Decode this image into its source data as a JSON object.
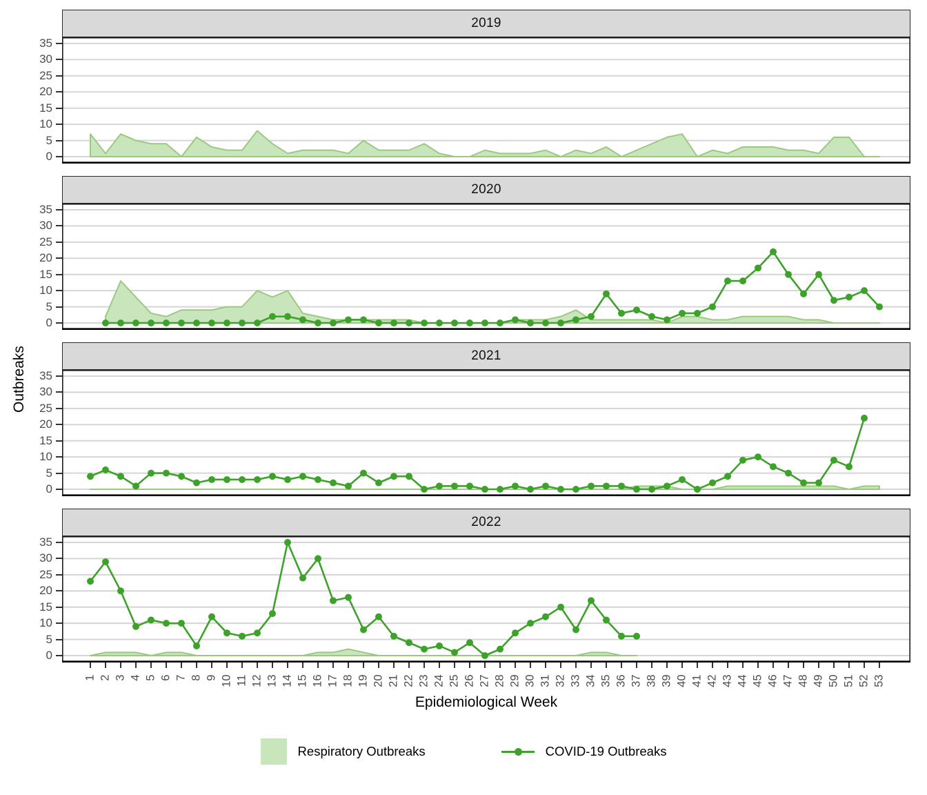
{
  "title": "",
  "axis": {
    "x_title": "Epidemiological Week",
    "y_title": "Outbreaks",
    "x_tick_labels": [
      "1",
      "2",
      "3",
      "4",
      "5",
      "6",
      "7",
      "8",
      "9",
      "10",
      "11",
      "12",
      "13",
      "14",
      "15",
      "16",
      "17",
      "18",
      "19",
      "20",
      "21",
      "22",
      "23",
      "24",
      "25",
      "26",
      "27",
      "28",
      "29",
      "30",
      "31",
      "32",
      "33",
      "34",
      "35",
      "36",
      "37",
      "38",
      "39",
      "40",
      "41",
      "42",
      "43",
      "44",
      "45",
      "46",
      "47",
      "48",
      "49",
      "50",
      "51",
      "52",
      "53"
    ],
    "y_tick_labels": [
      "0",
      "5",
      "10",
      "15",
      "20",
      "25",
      "30",
      "35"
    ]
  },
  "legend": {
    "items": [
      {
        "label": "Respiratory Outbreaks",
        "symbol": "area-swatch"
      },
      {
        "label": "COVID-19 Outbreaks",
        "symbol": "line-with-point"
      }
    ]
  },
  "colors": {
    "line_green": "#3DA229",
    "area_fill": "#C9E5BB",
    "area_edge": "#9BC981",
    "strip_bg": "#D9D9D9",
    "gridline": "#D5D5D5",
    "axis_text": "#4D4D4D",
    "panel_border": "#1A1A1A"
  },
  "chart_data": {
    "type": "area+line faceted by year",
    "x_range": [
      1,
      53
    ],
    "ylim": [
      0,
      35
    ],
    "grid": "horizontal major every 5",
    "legend_position": "bottom",
    "facets": [
      {
        "year": "2019",
        "respiratory": {
          "start_week": 1,
          "values": [
            7,
            1,
            7,
            5,
            4,
            4,
            0,
            6,
            3,
            2,
            2,
            8,
            4,
            1,
            2,
            2,
            2,
            1,
            5,
            2,
            2,
            2,
            4,
            1,
            0,
            0,
            2,
            1,
            1,
            1,
            2,
            0,
            2,
            1,
            3,
            0,
            2,
            4,
            6,
            7,
            0,
            2,
            1,
            3,
            3,
            3,
            2,
            2,
            1,
            6,
            6,
            0,
            0
          ]
        },
        "covid": null
      },
      {
        "year": "2020",
        "respiratory": {
          "start_week": 2,
          "values": [
            2,
            13,
            8,
            3,
            2,
            4,
            4,
            4,
            5,
            5,
            10,
            8,
            10,
            3,
            2,
            1,
            1,
            1,
            1,
            1,
            1,
            0,
            0,
            0,
            0,
            0,
            0,
            1,
            1,
            1,
            2,
            4,
            1,
            1,
            1,
            1,
            1,
            0,
            2,
            2,
            1,
            1,
            2,
            2,
            2,
            2,
            1,
            1,
            0,
            0,
            0,
            0
          ]
        },
        "covid": {
          "start_week": 2,
          "values": [
            0,
            0,
            0,
            0,
            0,
            0,
            0,
            0,
            0,
            0,
            0,
            2,
            2,
            1,
            0,
            0,
            1,
            1,
            0,
            0,
            0,
            0,
            0,
            0,
            0,
            0,
            0,
            1,
            0,
            0,
            0,
            1,
            2,
            9,
            3,
            4,
            2,
            1,
            3,
            3,
            5,
            13,
            13,
            17,
            22,
            15,
            9,
            15,
            7,
            8,
            10,
            5
          ]
        }
      },
      {
        "year": "2021",
        "respiratory": {
          "start_week": 1,
          "values": [
            0,
            0,
            0,
            0,
            0,
            0,
            0,
            0,
            0,
            0,
            0,
            0,
            0,
            0,
            0,
            0,
            0,
            0,
            0,
            0,
            0,
            0,
            0,
            0,
            0,
            0,
            0,
            0,
            0,
            0,
            0,
            0,
            0,
            0,
            0,
            0,
            1,
            1,
            1,
            0,
            0,
            0,
            1,
            1,
            1,
            1,
            1,
            1,
            1,
            1,
            0,
            1,
            1
          ]
        },
        "covid": {
          "start_week": 1,
          "values": [
            4,
            6,
            4,
            1,
            5,
            5,
            4,
            2,
            3,
            3,
            3,
            3,
            4,
            3,
            4,
            3,
            2,
            1,
            5,
            2,
            4,
            4,
            0,
            1,
            1,
            1,
            0,
            0,
            1,
            0,
            1,
            0,
            0,
            1,
            1,
            1,
            0,
            0,
            1,
            3,
            0,
            2,
            4,
            9,
            10,
            7,
            5,
            2,
            2,
            9,
            7,
            22
          ]
        }
      },
      {
        "year": "2022",
        "respiratory": {
          "start_week": 1,
          "values": [
            0,
            1,
            1,
            1,
            0,
            1,
            1,
            0,
            0,
            0,
            0,
            0,
            0,
            0,
            0,
            1,
            1,
            2,
            1,
            0,
            0,
            0,
            0,
            0,
            0,
            0,
            0,
            0,
            0,
            0,
            0,
            0,
            0,
            1,
            1,
            0,
            0
          ]
        },
        "covid": {
          "start_week": 1,
          "values": [
            23,
            29,
            20,
            9,
            11,
            10,
            10,
            3,
            12,
            7,
            6,
            7,
            13,
            35,
            24,
            30,
            17,
            18,
            8,
            12,
            6,
            4,
            2,
            3,
            1,
            4,
            0,
            2,
            7,
            10,
            12,
            15,
            8,
            17,
            11,
            6,
            6
          ]
        }
      }
    ]
  }
}
